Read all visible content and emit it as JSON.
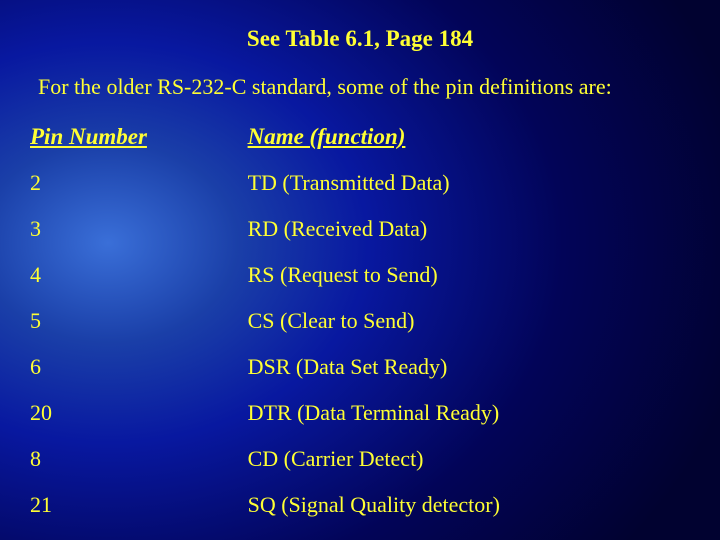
{
  "slide": {
    "title": "See Table 6.1, Page 184",
    "subtitle": "For the older RS-232-C standard, some of the pin definitions are:",
    "background_gradient": {
      "type": "radial",
      "center_color": "#3a6fd8",
      "mid_color": "#0818a0",
      "outer_color": "#010230"
    },
    "text_color": "#ffff33",
    "title_fontsize_pt": 17,
    "body_fontsize_pt": 16,
    "font_family": "Times New Roman (serif)"
  },
  "table": {
    "type": "table",
    "columns": [
      {
        "header": "Pin Number",
        "width_pct": 32,
        "align": "left",
        "italic": true,
        "underline": true,
        "bold": true
      },
      {
        "header": "Name (function)",
        "width_pct": 68,
        "align": "left",
        "italic": true,
        "underline": true,
        "bold": true
      }
    ],
    "rows": [
      {
        "pin": "2",
        "name": "TD (Transmitted Data)"
      },
      {
        "pin": "3",
        "name": "RD (Received Data)"
      },
      {
        "pin": "4",
        "name": "RS (Request to Send)"
      },
      {
        "pin": "5",
        "name": "CS (Clear to Send)"
      },
      {
        "pin": "6",
        "name": "DSR (Data Set Ready)"
      },
      {
        "pin": "20",
        "name": "DTR (Data Terminal Ready)"
      },
      {
        "pin": "8",
        "name": "CD (Carrier Detect)"
      },
      {
        "pin": "21",
        "name": "SQ (Signal Quality detector)"
      }
    ]
  }
}
